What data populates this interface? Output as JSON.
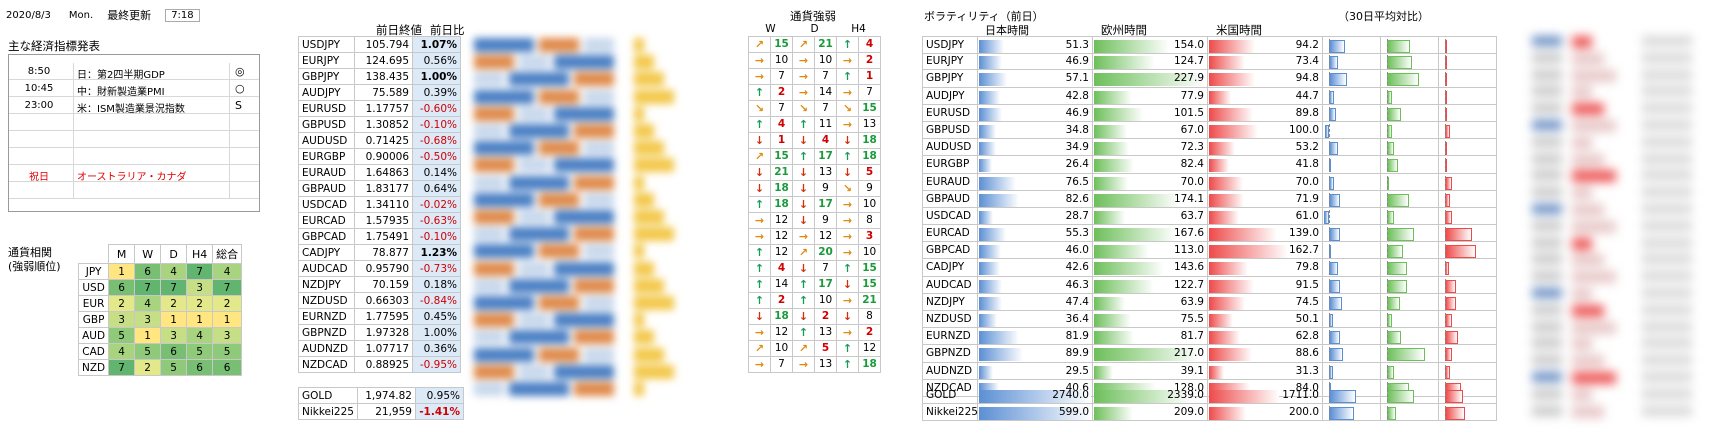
{
  "header": {
    "date": "2020/8/3",
    "weekday": "Mon.",
    "last_update_label": "最終更新",
    "time": "7:18"
  },
  "econ": {
    "title": "主な経済指標発表",
    "rows": [
      {
        "time": "8:50",
        "event": "日：第2四半期GDP",
        "mark": "◎",
        "red": false
      },
      {
        "time": "10:45",
        "event": "中：財新製造業PMI",
        "mark": "○",
        "red": false
      },
      {
        "time": "23:00",
        "event": "米：ISM製造業景況指数",
        "mark": "S",
        "red": false
      },
      {
        "time": "",
        "event": "",
        "mark": "",
        "red": false
      },
      {
        "time": "",
        "event": "",
        "mark": "",
        "red": false
      },
      {
        "time": "",
        "event": "",
        "mark": "",
        "red": false
      },
      {
        "time": "祝日",
        "event": "オーストラリア・カナダ",
        "mark": "",
        "red": true
      },
      {
        "time": "",
        "event": "",
        "mark": "",
        "red": false
      }
    ]
  },
  "corr": {
    "title1": "通貨相関",
    "title2": "(強弱順位)",
    "headers": [
      "M",
      "W",
      "D",
      "H4",
      "総合"
    ],
    "rows": [
      {
        "cur": "JPY",
        "vals": [
          "1",
          "6",
          "4",
          "7",
          "4"
        ]
      },
      {
        "cur": "USD",
        "vals": [
          "6",
          "7",
          "7",
          "3",
          "7"
        ]
      },
      {
        "cur": "EUR",
        "vals": [
          "2",
          "4",
          "2",
          "2",
          "2"
        ]
      },
      {
        "cur": "GBP",
        "vals": [
          "3",
          "3",
          "1",
          "1",
          "1"
        ]
      },
      {
        "cur": "AUD",
        "vals": [
          "5",
          "1",
          "3",
          "4",
          "3"
        ]
      },
      {
        "cur": "CAD",
        "vals": [
          "4",
          "5",
          "6",
          "5",
          "5"
        ]
      },
      {
        "cur": "NZD",
        "vals": [
          "7",
          "2",
          "5",
          "6",
          "6"
        ]
      }
    ],
    "colors": {
      "1": "#ffe680",
      "2": "#e3e88a",
      "3": "#c6df86",
      "4": "#a8d47f",
      "5": "#8fc97a",
      "6": "#78bf74",
      "7": "#62b56e"
    }
  },
  "pairs": {
    "col_close": "前日終値",
    "col_change": "前日比",
    "rows": [
      {
        "pair": "USDJPY",
        "close": "105.794",
        "change": "1.07%",
        "neg": false,
        "bold": true
      },
      {
        "pair": "EURJPY",
        "close": "124.695",
        "change": "0.56%",
        "neg": false,
        "bold": false
      },
      {
        "pair": "GBPJPY",
        "close": "138.435",
        "change": "1.00%",
        "neg": false,
        "bold": true
      },
      {
        "pair": "AUDJPY",
        "close": "75.589",
        "change": "0.39%",
        "neg": false,
        "bold": false
      },
      {
        "pair": "EURUSD",
        "close": "1.17757",
        "change": "-0.60%",
        "neg": true,
        "bold": false
      },
      {
        "pair": "GBPUSD",
        "close": "1.30852",
        "change": "-0.10%",
        "neg": true,
        "bold": false
      },
      {
        "pair": "AUDUSD",
        "close": "0.71425",
        "change": "-0.68%",
        "neg": true,
        "bold": false
      },
      {
        "pair": "EURGBP",
        "close": "0.90006",
        "change": "-0.50%",
        "neg": true,
        "bold": false
      },
      {
        "pair": "EURAUD",
        "close": "1.64863",
        "change": "0.14%",
        "neg": false,
        "bold": false
      },
      {
        "pair": "GBPAUD",
        "close": "1.83177",
        "change": "0.64%",
        "neg": false,
        "bold": false
      },
      {
        "pair": "USDCAD",
        "close": "1.34110",
        "change": "-0.02%",
        "neg": true,
        "bold": false
      },
      {
        "pair": "EURCAD",
        "close": "1.57935",
        "change": "-0.63%",
        "neg": true,
        "bold": false
      },
      {
        "pair": "GBPCAD",
        "close": "1.75491",
        "change": "-0.10%",
        "neg": true,
        "bold": false
      },
      {
        "pair": "CADJPY",
        "close": "78.877",
        "change": "1.23%",
        "neg": false,
        "bold": true
      },
      {
        "pair": "AUDCAD",
        "close": "0.95790",
        "change": "-0.73%",
        "neg": true,
        "bold": false
      },
      {
        "pair": "NZDJPY",
        "close": "70.159",
        "change": "0.18%",
        "neg": false,
        "bold": false
      },
      {
        "pair": "NZDUSD",
        "close": "0.66303",
        "change": "-0.84%",
        "neg": true,
        "bold": false
      },
      {
        "pair": "EURNZD",
        "close": "1.77595",
        "change": "0.45%",
        "neg": false,
        "bold": false
      },
      {
        "pair": "GBPNZD",
        "close": "1.97328",
        "change": "1.00%",
        "neg": false,
        "bold": false
      },
      {
        "pair": "AUDNZD",
        "close": "1.07717",
        "change": "0.36%",
        "neg": false,
        "bold": false
      },
      {
        "pair": "NZDCAD",
        "close": "0.88925",
        "change": "-0.95%",
        "neg": true,
        "bold": false
      }
    ],
    "extra": [
      {
        "pair": "GOLD",
        "close": "1,974.82",
        "change": "0.95%",
        "neg": false,
        "bold": false
      },
      {
        "pair": "Nikkei225",
        "close": "21,959",
        "change": "-1.41%",
        "neg": true,
        "bold": true
      }
    ]
  },
  "strength": {
    "title": "通貨強弱",
    "headers": [
      "W",
      "D",
      "H4"
    ],
    "rows": [
      [
        "ur",
        "15",
        "ur",
        "21",
        "up",
        "4"
      ],
      [
        "r",
        "10",
        "r",
        "10",
        "r",
        "2"
      ],
      [
        "r",
        "7",
        "r",
        "7",
        "up",
        "1"
      ],
      [
        "up",
        "2",
        "r",
        "14",
        "r",
        "7"
      ],
      [
        "dr",
        "7",
        "dr",
        "7",
        "dr",
        "15"
      ],
      [
        "up",
        "4",
        "up",
        "11",
        "r",
        "13"
      ],
      [
        "dn",
        "1",
        "dn",
        "4",
        "dn",
        "18"
      ],
      [
        "ur",
        "15",
        "up",
        "17",
        "up",
        "18"
      ],
      [
        "dn",
        "21",
        "dn",
        "13",
        "dn",
        "5"
      ],
      [
        "dn",
        "18",
        "dn",
        "9",
        "dr",
        "9"
      ],
      [
        "up",
        "18",
        "dn",
        "17",
        "r",
        "10"
      ],
      [
        "r",
        "12",
        "dn",
        "9",
        "r",
        "8"
      ],
      [
        "r",
        "12",
        "r",
        "12",
        "r",
        "3"
      ],
      [
        "up",
        "12",
        "ur",
        "20",
        "r",
        "10"
      ],
      [
        "up",
        "4",
        "dn",
        "7",
        "up",
        "15"
      ],
      [
        "up",
        "14",
        "up",
        "17",
        "dn",
        "15"
      ],
      [
        "up",
        "2",
        "up",
        "10",
        "r",
        "21"
      ],
      [
        "dn",
        "18",
        "dn",
        "2",
        "dn",
        "8"
      ],
      [
        "r",
        "12",
        "up",
        "13",
        "r",
        "2"
      ],
      [
        "ur",
        "10",
        "ur",
        "5",
        "up",
        "12"
      ],
      [
        "r",
        "7",
        "r",
        "13",
        "up",
        "18"
      ]
    ],
    "red_threshold": 6,
    "green_threshold": 15
  },
  "vol": {
    "title": "ボラティリティ（前日）",
    "title2": "（30日平均対比）",
    "cols": [
      "日本時間",
      "欧州時間",
      "米国時間"
    ],
    "rows": [
      [
        "USDJPY",
        "51.3",
        "154.0",
        "94.2"
      ],
      [
        "EURJPY",
        "46.9",
        "124.7",
        "73.4"
      ],
      [
        "GBPJPY",
        "57.1",
        "227.9",
        "94.8"
      ],
      [
        "AUDJPY",
        "42.8",
        "77.9",
        "44.7"
      ],
      [
        "EURUSD",
        "46.9",
        "101.5",
        "89.8"
      ],
      [
        "GBPUSD",
        "34.8",
        "67.0",
        "100.0"
      ],
      [
        "AUDUSD",
        "34.9",
        "72.3",
        "53.2"
      ],
      [
        "EURGBP",
        "26.4",
        "82.4",
        "41.8"
      ],
      [
        "EURAUD",
        "76.5",
        "70.0",
        "70.0"
      ],
      [
        "GBPAUD",
        "82.6",
        "174.1",
        "71.9"
      ],
      [
        "USDCAD",
        "28.7",
        "63.7",
        "61.0"
      ],
      [
        "EURCAD",
        "55.3",
        "167.6",
        "139.0"
      ],
      [
        "GBPCAD",
        "46.0",
        "113.0",
        "162.7"
      ],
      [
        "CADJPY",
        "42.6",
        "143.6",
        "79.8"
      ],
      [
        "AUDCAD",
        "46.3",
        "122.7",
        "91.5"
      ],
      [
        "NZDJPY",
        "47.4",
        "63.9",
        "74.5"
      ],
      [
        "NZDUSD",
        "36.4",
        "75.5",
        "50.1"
      ],
      [
        "EURNZD",
        "81.9",
        "81.7",
        "62.8"
      ],
      [
        "GBPNZD",
        "89.9",
        "217.0",
        "88.6"
      ],
      [
        "AUDNZD",
        "29.5",
        "39.1",
        "31.3"
      ],
      [
        "NZDCAD",
        "40.6",
        "128.0",
        "84.0"
      ]
    ],
    "extra": [
      [
        "GOLD",
        "2740.0",
        "2339.0",
        "1711.0"
      ],
      [
        "Nikkei225",
        "599.0",
        "209.0",
        "200.0"
      ]
    ],
    "scale": 230,
    "extra_scale": [
      2740,
      2740,
      2740,
      600,
      600,
      600
    ],
    "ratio": [
      [
        0.18,
        0.25,
        0.0
      ],
      [
        0.1,
        0.28,
        0.0
      ],
      [
        0.2,
        0.35,
        0.02
      ],
      [
        0.06,
        0.06,
        0.0
      ],
      [
        0.08,
        0.15,
        0.0
      ],
      [
        -0.04,
        0.06,
        0.06
      ],
      [
        0.1,
        0.08,
        0.0
      ],
      [
        0.02,
        0.12,
        0.0
      ],
      [
        0.06,
        0.02,
        0.08
      ],
      [
        0.12,
        0.24,
        0.06
      ],
      [
        -0.06,
        0.08,
        0.08
      ],
      [
        0.12,
        0.3,
        0.3
      ],
      [
        0.0,
        0.18,
        0.34
      ],
      [
        0.1,
        0.22,
        0.04
      ],
      [
        0.12,
        0.22,
        0.12
      ],
      [
        0.14,
        0.14,
        0.12
      ],
      [
        0.04,
        0.06,
        0.08
      ],
      [
        0.12,
        0.16,
        0.14
      ],
      [
        0.16,
        0.42,
        0.08
      ],
      [
        0.04,
        0.08,
        0.06
      ],
      [
        0.0,
        0.24,
        0.18
      ]
    ],
    "ratio_extra": [
      [
        0.3,
        0.3,
        0.2
      ],
      [
        0.28,
        0.1,
        0.22
      ]
    ]
  },
  "colors": {
    "blue": "#5b8fd4",
    "green": "#6dbf5a",
    "red": "#ee4a4a",
    "change_bg": "#dce9f7"
  }
}
